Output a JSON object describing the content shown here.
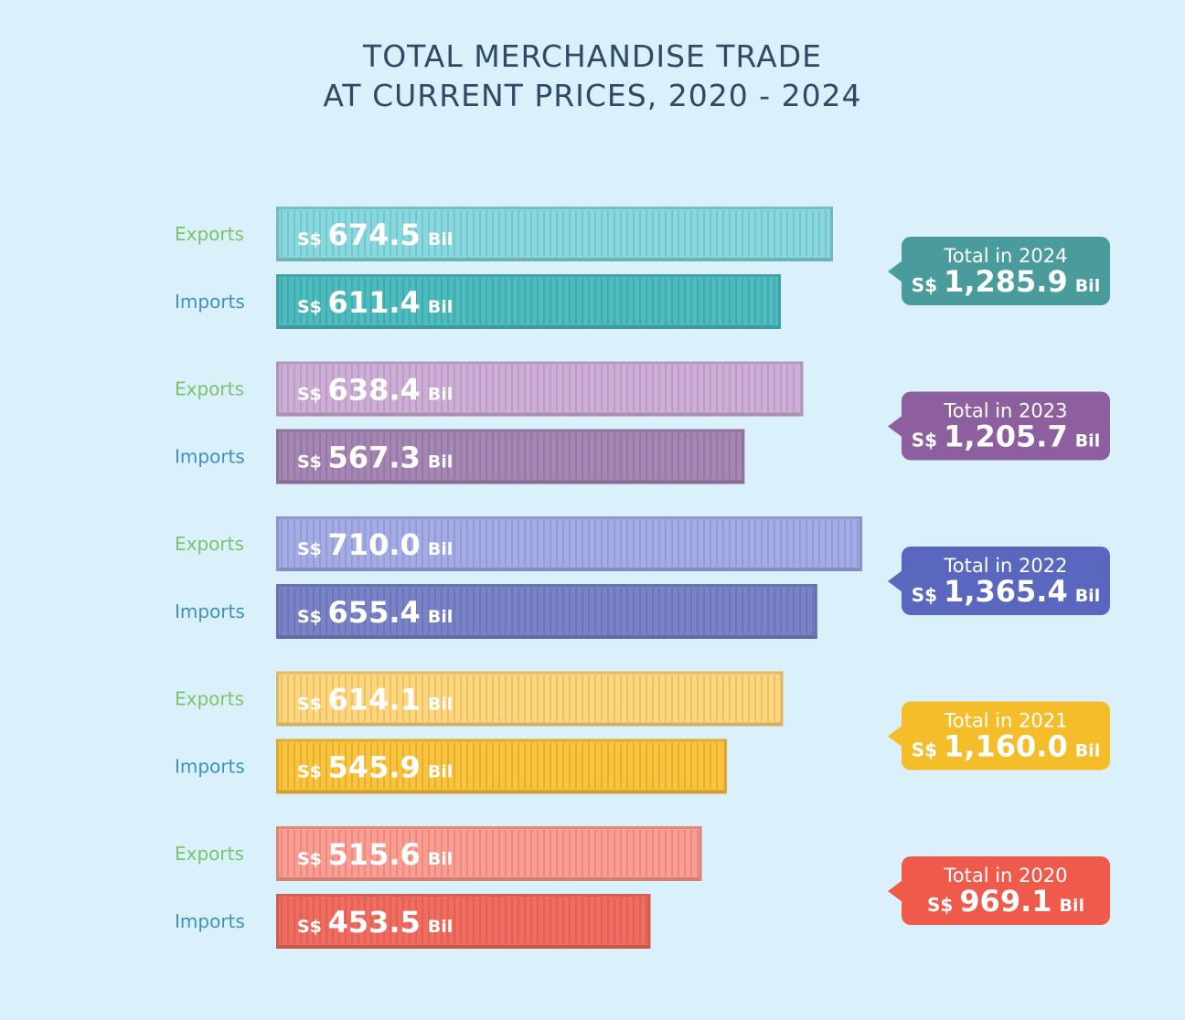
{
  "title_line1": "TOTAL MERCHANDISE TRADE",
  "title_line2": "AT CURRENT PRICES, 2020 - 2024",
  "chart_data": {
    "type": "bar",
    "orientation": "horizontal",
    "currency_prefix": "S$",
    "unit_suffix": "Bil",
    "label_colors": {
      "Exports": "#7cc26d",
      "Imports": "#3f8fc2"
    },
    "groups": [
      {
        "year": "2024",
        "total_label": "Total in 2024",
        "total": "1,285.9",
        "callout_color": "#4a9c9c",
        "bars": [
          {
            "name": "Exports",
            "value": 674.5,
            "value_label": "674.5",
            "color": "#86d9df"
          },
          {
            "name": "Imports",
            "value": 611.4,
            "value_label": "611.4",
            "color": "#4cbcbf"
          }
        ]
      },
      {
        "year": "2023",
        "total_label": "Total in 2023",
        "total": "1,205.7",
        "callout_color": "#8d5f9f",
        "bars": [
          {
            "name": "Exports",
            "value": 638.4,
            "value_label": "638.4",
            "color": "#ceaed8"
          },
          {
            "name": "Imports",
            "value": 567.3,
            "value_label": "567.3",
            "color": "#a585b3"
          }
        ]
      },
      {
        "year": "2022",
        "total_label": "Total in 2022",
        "total": "1,365.4",
        "callout_color": "#5a67be",
        "bars": [
          {
            "name": "Exports",
            "value": 710.0,
            "value_label": "710.0",
            "color": "#a3ace6"
          },
          {
            "name": "Imports",
            "value": 655.4,
            "value_label": "655.4",
            "color": "#7a82c8"
          }
        ]
      },
      {
        "year": "2021",
        "total_label": "Total in 2021",
        "total": "1,160.0",
        "callout_color": "#f6bd2a",
        "bars": [
          {
            "name": "Exports",
            "value": 614.1,
            "value_label": "614.1",
            "color": "#ffd67a"
          },
          {
            "name": "Imports",
            "value": 545.9,
            "value_label": "545.9",
            "color": "#fcc33c"
          }
        ]
      },
      {
        "year": "2020",
        "total_label": "Total in 2020",
        "total": "969.1",
        "callout_color": "#ef5a4a",
        "bars": [
          {
            "name": "Exports",
            "value": 515.6,
            "value_label": "515.6",
            "color": "#fd9c90"
          },
          {
            "name": "Imports",
            "value": 453.5,
            "value_label": "453.5",
            "color": "#f16c5e"
          }
        ]
      }
    ]
  }
}
